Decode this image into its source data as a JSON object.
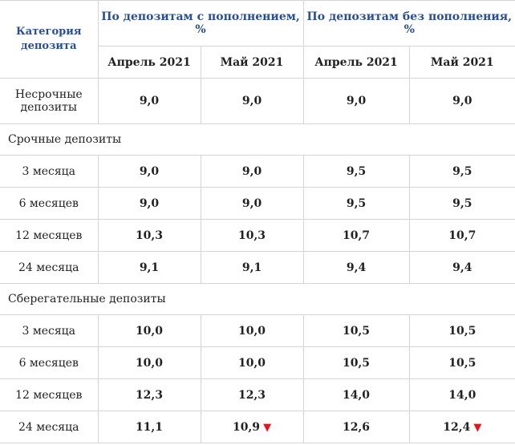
{
  "header": {
    "category": "Категория депозита",
    "group_with": "По депозитам с пополнением, %",
    "group_without": "По депозитам без пополнения, %",
    "months": [
      "Апрель 2021",
      "Май 2021",
      "Апрель 2021",
      "Май 2021"
    ]
  },
  "rows": {
    "nonterm": {
      "label": "Несрочные депозиты",
      "v": [
        "9,0",
        "9,0",
        "9,0",
        "9,0"
      ]
    },
    "term_section": "Срочные депозиты",
    "t3": {
      "label": "3 месяца",
      "v": [
        "9,0",
        "9,0",
        "9,5",
        "9,5"
      ]
    },
    "t6": {
      "label": "6 месяцев",
      "v": [
        "9,0",
        "9,0",
        "9,5",
        "9,5"
      ]
    },
    "t12": {
      "label": "12 месяцев",
      "v": [
        "10,3",
        "10,3",
        "10,7",
        "10,7"
      ]
    },
    "t24": {
      "label": "24 месяца",
      "v": [
        "9,1",
        "9,1",
        "9,4",
        "9,4"
      ]
    },
    "savings_section": "Сберегательные депозиты",
    "s3": {
      "label": "3 месяца",
      "v": [
        "10,0",
        "10,0",
        "10,5",
        "10,5"
      ]
    },
    "s6": {
      "label": "6 месяцев",
      "v": [
        "10,0",
        "10,0",
        "10,5",
        "10,5"
      ]
    },
    "s12": {
      "label": "12 месяцев",
      "v": [
        "12,3",
        "12,3",
        "14,0",
        "14,0"
      ]
    },
    "s24": {
      "label": "24 месяца",
      "v": [
        "11,1",
        "10,9",
        "12,6",
        "12,4"
      ]
    }
  },
  "colors": {
    "header_text": "#2a4f8f",
    "decrease_marker": "#e8141b",
    "border": "#d5d5d5"
  },
  "icons": {
    "decrease": "red-down-triangle-icon"
  }
}
